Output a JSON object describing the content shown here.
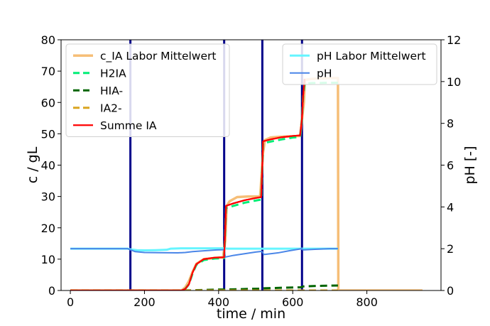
{
  "chart_data": {
    "type": "line",
    "xlabel": "time / min",
    "ylabel": "c / gL",
    "y2label": "pH [-]",
    "xlim": [
      -25,
      1000
    ],
    "ylim": [
      0,
      80
    ],
    "y2lim": [
      0,
      12
    ],
    "xticks": [
      0,
      200,
      400,
      600,
      800
    ],
    "yticks": [
      0,
      10,
      20,
      30,
      40,
      50,
      60,
      70,
      80
    ],
    "y2ticks": [
      0,
      2,
      4,
      6,
      8,
      10,
      12
    ],
    "grid": false,
    "legend_left_placement": "upper-left",
    "legend_right_placement": "upper-right",
    "vlines": {
      "color": "#00008b",
      "x": [
        162,
        415,
        518,
        625
      ]
    },
    "series_left": [
      {
        "name": "c_IA Labor Mittelwert",
        "color": "#f5b35f",
        "style": "solid",
        "width": 3.5,
        "opacity": 0.85,
        "x": [
          0,
          300,
          310,
          320,
          330,
          340,
          360,
          400,
          412,
          418,
          422,
          430,
          450,
          480,
          512,
          520,
          525,
          540,
          560,
          600,
          620,
          630,
          633,
          650,
          700,
          722,
          723,
          730,
          950
        ],
        "y": [
          0,
          0,
          1,
          3,
          6,
          8.5,
          10,
          10.5,
          10.5,
          16,
          27,
          28.5,
          29.8,
          30,
          30,
          44,
          48,
          48.8,
          49,
          49.2,
          49.3,
          60,
          67.2,
          67.5,
          67.8,
          67.8,
          0,
          0,
          0
        ]
      },
      {
        "name": "H2IA",
        "color": "#00ee76",
        "style": "dashed",
        "width": 3,
        "x": [
          0,
          300,
          310,
          320,
          330,
          340,
          360,
          390,
          415,
          418,
          420,
          440,
          470,
          500,
          515,
          518,
          520,
          540,
          570,
          600,
          620,
          625,
          628,
          632,
          650,
          700,
          722
        ],
        "y": [
          0,
          0,
          0.5,
          2,
          5.5,
          8.2,
          9.7,
          10.2,
          10.3,
          20,
          26.3,
          27,
          28,
          28.7,
          29,
          40,
          47,
          47.5,
          48.2,
          48.8,
          49,
          55,
          62,
          66,
          66.2,
          66.3,
          66.3
        ]
      },
      {
        "name": "HIA-",
        "color": "#006400",
        "style": "dashed",
        "width": 3,
        "x": [
          0,
          300,
          340,
          400,
          415,
          420,
          480,
          518,
          522,
          580,
          620,
          625,
          628,
          680,
          722
        ],
        "y": [
          0,
          0,
          0.1,
          0.3,
          0.3,
          0.3,
          0.5,
          0.6,
          0.7,
          0.9,
          1.0,
          1.1,
          1.3,
          1.5,
          1.6
        ]
      },
      {
        "name": "IA2-",
        "color": "#daa520",
        "style": "dashed",
        "width": 3,
        "x": [
          0,
          722
        ],
        "y": [
          0,
          0
        ]
      },
      {
        "name": "Summe IA",
        "color": "#ff0000",
        "style": "solid",
        "width": 2.2,
        "x": [
          0,
          300,
          310,
          320,
          330,
          340,
          360,
          390,
          415,
          418,
          420,
          440,
          470,
          500,
          515,
          518,
          520,
          540,
          570,
          600,
          620,
          625,
          628,
          632
        ],
        "y": [
          0,
          0,
          0.5,
          2,
          5.8,
          8.4,
          10,
          10.5,
          10.6,
          20,
          27,
          27.8,
          28.8,
          29.5,
          29.8,
          40,
          47.6,
          48.2,
          48.9,
          49.3,
          49.5,
          55,
          62,
          67.5
        ]
      }
    ],
    "series_right": [
      {
        "name": "pH Labor Mittelwert",
        "color": "#66f5ff",
        "style": "solid",
        "width": 3,
        "x": [
          0,
          155,
          165,
          180,
          200,
          230,
          260,
          270,
          300,
          350,
          380,
          400,
          415,
          425,
          450,
          500,
          520,
          530,
          560,
          600,
          620,
          630,
          680,
          722
        ],
        "y": [
          2.0,
          2.0,
          1.96,
          1.93,
          1.92,
          1.93,
          1.95,
          2.0,
          2.02,
          2.02,
          2.02,
          2.02,
          2.02,
          2.0,
          2.0,
          2.0,
          2.0,
          2.0,
          2.0,
          2.0,
          2.0,
          2.0,
          2.0,
          2.0
        ]
      },
      {
        "name": "pH",
        "color": "#4a86e8",
        "style": "solid",
        "width": 2,
        "x": [
          0,
          140,
          155,
          162,
          175,
          200,
          240,
          290,
          310,
          330,
          360,
          395,
          410,
          415,
          418,
          440,
          470,
          500,
          515,
          518,
          522,
          560,
          590,
          610,
          625,
          628,
          660,
          700,
          722
        ],
        "y": [
          2.0,
          2.0,
          2.0,
          1.95,
          1.86,
          1.82,
          1.81,
          1.8,
          1.82,
          1.86,
          1.9,
          1.94,
          1.95,
          1.96,
          1.6,
          1.68,
          1.76,
          1.84,
          1.87,
          1.85,
          1.72,
          1.8,
          1.9,
          1.96,
          2.0,
          1.94,
          1.97,
          2.0,
          2.0
        ]
      }
    ]
  }
}
